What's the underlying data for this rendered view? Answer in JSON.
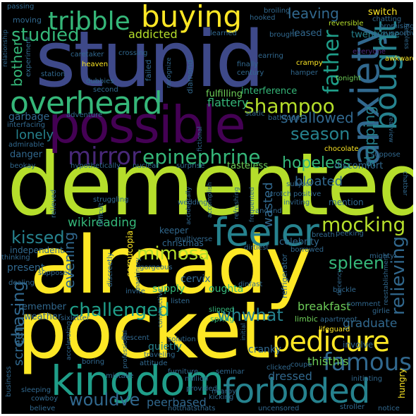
{
  "palette": {
    "background": "#000000",
    "yellow": "#fde725",
    "lime": "#b5de2b",
    "green": "#6ece58",
    "teal_green": "#35b779",
    "teal": "#1f9e89",
    "cyan_blue": "#26828e",
    "blue": "#31688e",
    "indigo": "#3e4989",
    "violet": "#482878",
    "purple": "#440154"
  },
  "words": [
    {
      "text": "demented",
      "color": "#b5de2b",
      "weight": 1.0
    },
    {
      "text": "already",
      "color": "#fde725",
      "weight": 0.92
    },
    {
      "text": "pocket",
      "color": "#fde725",
      "weight": 0.9
    },
    {
      "text": "stupid",
      "color": "#3e4989",
      "weight": 0.88
    },
    {
      "text": "possible",
      "color": "#440154",
      "weight": 0.7
    },
    {
      "text": "kingdom",
      "color": "#1f9e89",
      "weight": 0.55
    },
    {
      "text": "forboded",
      "color": "#26828e",
      "weight": 0.55
    },
    {
      "text": "feeler",
      "color": "#26828e",
      "weight": 0.5
    },
    {
      "text": "anxiety",
      "color": "#31688e",
      "weight": 0.5
    },
    {
      "text": "buying",
      "color": "#fde725",
      "weight": 0.45
    },
    {
      "text": "overheard",
      "color": "#35b779",
      "weight": 0.45
    },
    {
      "text": "bought",
      "color": "#26828e",
      "weight": 0.45
    },
    {
      "text": "pedicure",
      "color": "#fde725",
      "weight": 0.42
    },
    {
      "text": "tribble",
      "color": "#35b779",
      "weight": 0.38
    },
    {
      "text": "mirror",
      "color": "#482878",
      "weight": 0.38
    },
    {
      "text": "famous",
      "color": "#31688e",
      "weight": 0.36
    },
    {
      "text": "epinephrine",
      "color": "#35b779",
      "weight": 0.32
    },
    {
      "text": "shampoo",
      "color": "#b5de2b",
      "weight": 0.32
    },
    {
      "text": "mocking",
      "color": "#b5de2b",
      "weight": 0.32
    },
    {
      "text": "father",
      "color": "#1f9e89",
      "weight": 0.3
    },
    {
      "text": "challenged",
      "color": "#1f9e89",
      "weight": 0.3
    },
    {
      "text": "relieving",
      "color": "#31688e",
      "weight": 0.3
    },
    {
      "text": "studied",
      "color": "#35b779",
      "weight": 0.27
    },
    {
      "text": "season",
      "color": "#26828e",
      "weight": 0.27
    },
    {
      "text": "kissed",
      "color": "#26828e",
      "weight": 0.27
    },
    {
      "text": "wouldve",
      "color": "#31688e",
      "weight": 0.27
    },
    {
      "text": "whwhat",
      "color": "#26828e",
      "weight": 0.27
    },
    {
      "text": "spleen",
      "color": "#35b779",
      "weight": 0.27
    },
    {
      "text": "mimosa",
      "color": "#b5de2b",
      "weight": 0.27
    },
    {
      "text": "chasing",
      "color": "#31688e",
      "weight": 0.27
    },
    {
      "text": "hopeless",
      "color": "#35b779",
      "weight": 0.25
    },
    {
      "text": "leaving",
      "color": "#31688e",
      "weight": 0.22
    },
    {
      "text": "swallowed",
      "color": "#31688e",
      "weight": 0.22
    },
    {
      "text": "stopping",
      "color": "#26828e",
      "weight": 0.22
    },
    {
      "text": "bother",
      "color": "#35b779",
      "weight": 0.22
    },
    {
      "text": "lonely",
      "color": "#26828e",
      "weight": 0.22
    },
    {
      "text": "wasted",
      "color": "#31688e",
      "weight": 0.22
    },
    {
      "text": "bloated",
      "color": "#31688e",
      "weight": 0.22
    },
    {
      "text": "wikireading",
      "color": "#35b779",
      "weight": 0.2
    },
    {
      "text": "addicted",
      "color": "#b5de2b",
      "weight": 0.2
    },
    {
      "text": "flattery",
      "color": "#35b779",
      "weight": 0.2
    },
    {
      "text": "evening",
      "color": "#31688e",
      "weight": 0.2
    },
    {
      "text": "graduate",
      "color": "#31688e",
      "weight": 0.2
    },
    {
      "text": "breakfast",
      "color": "#6ece58",
      "weight": 0.2
    },
    {
      "text": "peerbased",
      "color": "#31688e",
      "weight": 0.2
    },
    {
      "text": "screen",
      "color": "#31688e",
      "weight": 0.2
    },
    {
      "text": "dressed",
      "color": "#31688e",
      "weight": 0.18
    },
    {
      "text": "thisthis",
      "color": "#6ece58",
      "weight": 0.18
    },
    {
      "text": "cranky",
      "color": "#31688e",
      "weight": 0.16
    },
    {
      "text": "supply",
      "color": "#35b779",
      "weight": 0.16
    },
    {
      "text": "quietly",
      "color": "#26828e",
      "weight": 0.16
    },
    {
      "text": "interference",
      "color": "#35b779",
      "weight": 0.16
    },
    {
      "text": "fulfilling",
      "color": "#6ece58",
      "weight": 0.16
    },
    {
      "text": "garbage",
      "color": "#31688e",
      "weight": 0.16
    },
    {
      "text": "tasteless",
      "color": "#6ece58",
      "weight": 0.16
    },
    {
      "text": "discomfort",
      "color": "#31688e",
      "weight": 0.16
    },
    {
      "text": "danger",
      "color": "#31688e",
      "weight": 0.15
    },
    {
      "text": "celebrity",
      "color": "#31688e",
      "weight": 0.15
    },
    {
      "text": "christmas",
      "color": "#31688e",
      "weight": 0.15
    },
    {
      "text": "cervix",
      "color": "#31688e",
      "weight": 0.15
    },
    {
      "text": "oughta",
      "color": "#35b779",
      "weight": 0.15
    },
    {
      "text": "present",
      "color": "#31688e",
      "weight": 0.15
    },
    {
      "text": "remember",
      "color": "#31688e",
      "weight": 0.15
    },
    {
      "text": "weather",
      "color": "#31688e",
      "weight": 0.15
    },
    {
      "text": "leased",
      "color": "#31688e",
      "weight": 0.14
    },
    {
      "text": "twentyone",
      "color": "#26828e",
      "weight": 0.14
    },
    {
      "text": "switch",
      "color": "#fde725",
      "weight": 0.13
    },
    {
      "text": "cornucopia",
      "color": "#fde725",
      "weight": 0.13
    },
    {
      "text": "hungry",
      "color": "#fde725",
      "weight": 0.13
    },
    {
      "text": "refrigerator",
      "color": "#31688e",
      "weight": 0.13
    },
    {
      "text": "independent",
      "color": "#31688e",
      "weight": 0.13
    },
    {
      "text": "keeper",
      "color": "#31688e",
      "weight": 0.13
    },
    {
      "text": "moving",
      "color": "#31688e",
      "weight": 0.12
    },
    {
      "text": "failed",
      "color": "#31688e",
      "weight": 0.12
    },
    {
      "text": "diamond",
      "color": "#31688e",
      "weight": 0.12
    },
    {
      "text": "mention",
      "color": "#31688e",
      "weight": 0.12
    },
    {
      "text": "involve",
      "color": "#31688e",
      "weight": 0.12
    },
    {
      "text": "limbic",
      "color": "#6ece58",
      "weight": 0.12
    },
    {
      "text": "spring",
      "color": "#35b779",
      "weight": 0.12
    },
    {
      "text": "slipped",
      "color": "#35b779",
      "weight": 0.12
    },
    {
      "text": "nearby",
      "color": "#31688e",
      "weight": 0.1
    },
    {
      "text": "caretaker",
      "color": "#31688e",
      "weight": 0.1
    },
    {
      "text": "crossing",
      "color": "#31688e",
      "weight": 0.1
    },
    {
      "text": "earring",
      "color": "#31688e",
      "weight": 0.1
    },
    {
      "text": "century",
      "color": "#31688e",
      "weight": 0.1
    },
    {
      "text": "finally",
      "color": "#31688e",
      "weight": 0.1
    },
    {
      "text": "hamper",
      "color": "#31688e",
      "weight": 0.1
    },
    {
      "text": "heaven",
      "color": "#fde725",
      "weight": 0.1
    },
    {
      "text": "awkward",
      "color": "#fde725",
      "weight": 0.1
    },
    {
      "text": "crampy",
      "color": "#fde725",
      "weight": 0.1
    },
    {
      "text": "tonight",
      "color": "#6ece58",
      "weight": 0.1
    },
    {
      "text": "relieved",
      "color": "#31688e",
      "weight": 0.1
    },
    {
      "text": "struggling",
      "color": "#31688e",
      "weight": 0.1
    },
    {
      "text": "borrowed",
      "color": "#31688e",
      "weight": 0.1
    },
    {
      "text": "dirtiest",
      "color": "#31688e",
      "weight": 0.1
    },
    {
      "text": "dinfast",
      "color": "#31688e",
      "weight": 0.1
    },
    {
      "text": "andand",
      "color": "#31688e",
      "weight": 0.1
    },
    {
      "text": "crotch",
      "color": "#31688e",
      "weight": 0.1
    },
    {
      "text": "peeking",
      "color": "#31688e",
      "weight": 0.1
    },
    {
      "text": "buckle",
      "color": "#31688e",
      "weight": 0.1
    },
    {
      "text": "comment",
      "color": "#31688e",
      "weight": 0.1
    },
    {
      "text": "lifeguard",
      "color": "#fde725",
      "weight": 0.1
    },
    {
      "text": "clicked",
      "color": "#31688e",
      "weight": 0.1
    },
    {
      "text": "million",
      "color": "#31688e",
      "weight": 0.1
    },
    {
      "text": "provided",
      "color": "#31688e",
      "weight": 0.1
    },
    {
      "text": "kicking",
      "color": "#31688e",
      "weight": 0.1
    },
    {
      "text": "notthatsthats",
      "color": "#31688e",
      "weight": 0.1
    },
    {
      "text": "uncensored",
      "color": "#31688e",
      "weight": 0.1
    },
    {
      "text": "stroller",
      "color": "#31688e",
      "weight": 0.1
    },
    {
      "text": "believe",
      "color": "#31688e",
      "weight": 0.1
    },
    {
      "text": "cowboy",
      "color": "#31688e",
      "weight": 0.1
    },
    {
      "text": "sleeping",
      "color": "#31688e",
      "weight": 0.1
    },
    {
      "text": "business",
      "color": "#31688e",
      "weight": 0.1
    },
    {
      "text": "mistake",
      "color": "#31688e",
      "weight": 0.1
    },
    {
      "text": "furniture",
      "color": "#31688e",
      "weight": 0.1
    },
    {
      "text": "traveling",
      "color": "#31688e",
      "weight": 0.1
    },
    {
      "text": "attitude",
      "color": "#31688e",
      "weight": 0.1
    },
    {
      "text": "solution",
      "color": "#31688e",
      "weight": 0.1
    },
    {
      "text": "descent",
      "color": "#31688e",
      "weight": 0.1
    },
    {
      "text": "sixletter",
      "color": "#31688e",
      "weight": 0.1
    },
    {
      "text": "boring",
      "color": "#31688e",
      "weight": 0.1
    },
    {
      "text": "invite",
      "color": "#31688e",
      "weight": 0.1
    },
    {
      "text": "dealing",
      "color": "#31688e",
      "weight": 0.1
    },
    {
      "text": "thinking",
      "color": "#31688e",
      "weight": 0.1
    },
    {
      "text": "supposed",
      "color": "#31688e",
      "weight": 0.1
    },
    {
      "text": "gorgeous",
      "color": "#31688e",
      "weight": 0.1
    },
    {
      "text": "discreetly",
      "color": "#31688e",
      "weight": 0.1
    },
    {
      "text": "wedding",
      "color": "#31688e",
      "weight": 0.1
    },
    {
      "text": "multiverse",
      "color": "#31688e",
      "weight": 0.1
    },
    {
      "text": "nuclear",
      "color": "#31688e",
      "weight": 0.1
    },
    {
      "text": "surprise",
      "color": "#31688e",
      "weight": 0.1
    },
    {
      "text": "hypothetically",
      "color": "#31688e",
      "weight": 0.1
    },
    {
      "text": "beokay",
      "color": "#31688e",
      "weight": 0.1
    },
    {
      "text": "admirable",
      "color": "#31688e",
      "weight": 0.1
    },
    {
      "text": "interfacing",
      "color": "#31688e",
      "weight": 0.1
    },
    {
      "text": "adventure",
      "color": "#31688e",
      "weight": 0.1
    },
    {
      "text": "chocolate",
      "color": "#fde725",
      "weight": 0.1
    },
    {
      "text": "suppose",
      "color": "#31688e",
      "weight": 0.1
    },
    {
      "text": "subject",
      "color": "#31688e",
      "weight": 0.1
    },
    {
      "text": "inviting",
      "color": "#31688e",
      "weight": 0.1
    },
    {
      "text": "bathroom",
      "color": "#31688e",
      "weight": 0.1
    },
    {
      "text": "static",
      "color": "#31688e",
      "weight": 0.1
    },
    {
      "text": "second",
      "color": "#31688e",
      "weight": 0.1
    },
    {
      "text": "dubbies",
      "color": "#31688e",
      "weight": 0.1
    },
    {
      "text": "station",
      "color": "#31688e",
      "weight": 0.1
    },
    {
      "text": "experiment",
      "color": "#31688e",
      "weight": 0.1
    },
    {
      "text": "relationship",
      "color": "#31688e",
      "weight": 0.1
    },
    {
      "text": "passing",
      "color": "#31688e",
      "weight": 0.1
    },
    {
      "text": "broiling",
      "color": "#31688e",
      "weight": 0.1
    },
    {
      "text": "hooked",
      "color": "#31688e",
      "weight": 0.1
    },
    {
      "text": "reversible",
      "color": "#b5de2b",
      "weight": 0.1
    },
    {
      "text": "chatting",
      "color": "#31688e",
      "weight": 0.1
    },
    {
      "text": "promising",
      "color": "#31688e",
      "weight": 0.1
    },
    {
      "text": "supportive",
      "color": "#31688e",
      "weight": 0.1
    },
    {
      "text": "learned",
      "color": "#31688e",
      "weight": 0.1
    },
    {
      "text": "brought",
      "color": "#31688e",
      "weight": 0.1
    },
    {
      "text": "recognize",
      "color": "#31688e",
      "weight": 0.1
    },
    {
      "text": "everyone",
      "color": "#482878",
      "weight": 0.1
    },
    {
      "text": "fictional",
      "color": "#31688e",
      "weight": 0.1
    },
    {
      "text": "frequented",
      "color": "#31688e",
      "weight": 0.1
    },
    {
      "text": "accomplish",
      "color": "#31688e",
      "weight": 0.1
    },
    {
      "text": "accidentally",
      "color": "#31688e",
      "weight": 0.1
    },
    {
      "text": "refreshing",
      "color": "#31688e",
      "weight": 0.1
    },
    {
      "text": "positive",
      "color": "#31688e",
      "weight": 0.1
    },
    {
      "text": "breath",
      "color": "#31688e",
      "weight": 0.1
    },
    {
      "text": "mighty",
      "color": "#31688e",
      "weight": 0.1
    },
    {
      "text": "decency",
      "color": "#31688e",
      "weight": 0.1
    },
    {
      "text": "reestablishment",
      "color": "#31688e",
      "weight": 0.1
    },
    {
      "text": "girlie",
      "color": "#31688e",
      "weight": 0.1
    },
    {
      "text": "apartment",
      "color": "#31688e",
      "weight": 0.1
    },
    {
      "text": "initial",
      "color": "#31688e",
      "weight": 0.1
    },
    {
      "text": "listen",
      "color": "#31688e",
      "weight": 0.1
    },
    {
      "text": "constructive",
      "color": "#31688e",
      "weight": 0.1
    },
    {
      "text": "seminar",
      "color": "#31688e",
      "weight": 0.1
    },
    {
      "text": "professional",
      "color": "#31688e",
      "weight": 0.1
    },
    {
      "text": "accelerating",
      "color": "#31688e",
      "weight": 0.1
    },
    {
      "text": "machinery",
      "color": "#31688e",
      "weight": 0.1
    },
    {
      "text": "difficult",
      "color": "#31688e",
      "weight": 0.1
    },
    {
      "text": "coupe",
      "color": "#31688e",
      "weight": 0.1
    },
    {
      "text": "initiating",
      "color": "#31688e",
      "weight": 0.1
    },
    {
      "text": "notice",
      "color": "#31688e",
      "weight": 0.1
    },
    {
      "text": "rearview",
      "color": "#31688e",
      "weight": 0.1
    },
    {
      "text": "helpless",
      "color": "#31688e",
      "weight": 0.1
    },
    {
      "text": "chatbar",
      "color": "#31688e",
      "weight": 0.1
    }
  ]
}
